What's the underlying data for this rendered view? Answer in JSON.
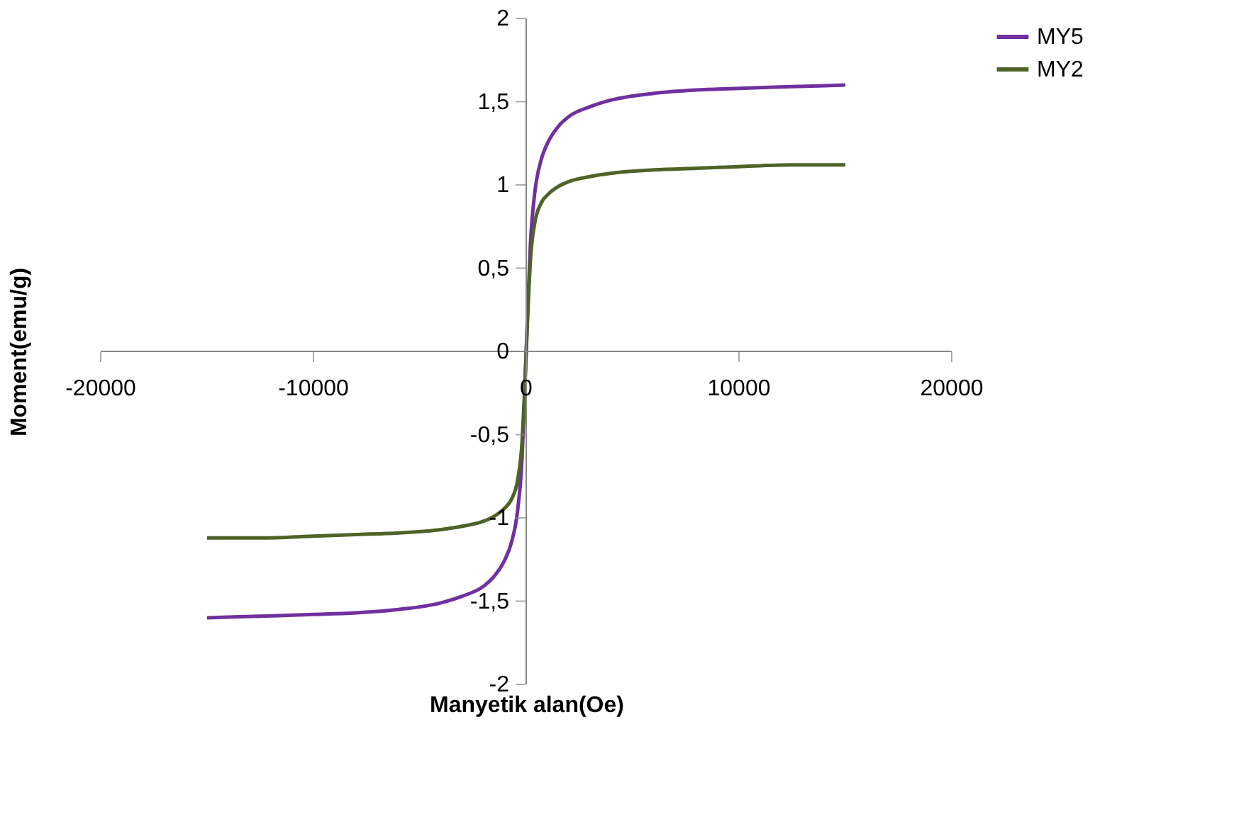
{
  "chart_data": {
    "type": "line",
    "xlabel": "Manyetik alan(Oe)",
    "ylabel": "Moment(emu/g)",
    "x": [
      -15000,
      -12500,
      -10000,
      -8000,
      -6000,
      -4000,
      -3000,
      -2000,
      -1500,
      -1000,
      -700,
      -400,
      -200,
      -100,
      0,
      100,
      200,
      400,
      700,
      1000,
      1500,
      2000,
      3000,
      4000,
      6000,
      8000,
      10000,
      12500,
      15000
    ],
    "series": [
      {
        "name": "MY5",
        "color": "#7030a0",
        "values": [
          -1.6,
          -1.59,
          -1.58,
          -1.57,
          -1.55,
          -1.51,
          -1.47,
          -1.41,
          -1.35,
          -1.25,
          -1.15,
          -0.95,
          -0.65,
          -0.35,
          0,
          0.35,
          0.65,
          0.95,
          1.15,
          1.25,
          1.35,
          1.41,
          1.47,
          1.51,
          1.55,
          1.57,
          1.58,
          1.59,
          1.6
        ]
      },
      {
        "name": "MY2",
        "color": "#4f6228",
        "values": [
          -1.12,
          -1.12,
          -1.11,
          -1.1,
          -1.09,
          -1.07,
          -1.05,
          -1.02,
          -0.99,
          -0.94,
          -0.89,
          -0.77,
          -0.55,
          -0.3,
          0,
          0.3,
          0.55,
          0.77,
          0.89,
          0.94,
          0.99,
          1.02,
          1.05,
          1.07,
          1.09,
          1.1,
          1.11,
          1.12,
          1.12
        ]
      }
    ],
    "xlim": [
      -20000,
      20000
    ],
    "xticks": [
      -20000,
      -10000,
      0,
      10000,
      20000
    ],
    "ylim": [
      -2,
      2
    ],
    "yticks": [
      -2,
      {
        "value": -1.5,
        "label": "-1,5"
      },
      -1,
      {
        "value": -0.5,
        "label": "-0,5"
      },
      0,
      {
        "value": 0.5,
        "label": "0,5"
      },
      1,
      {
        "value": 1.5,
        "label": "1,5"
      },
      2
    ],
    "grid": false,
    "legend": "right",
    "marker": "none",
    "line_style": "solid"
  }
}
